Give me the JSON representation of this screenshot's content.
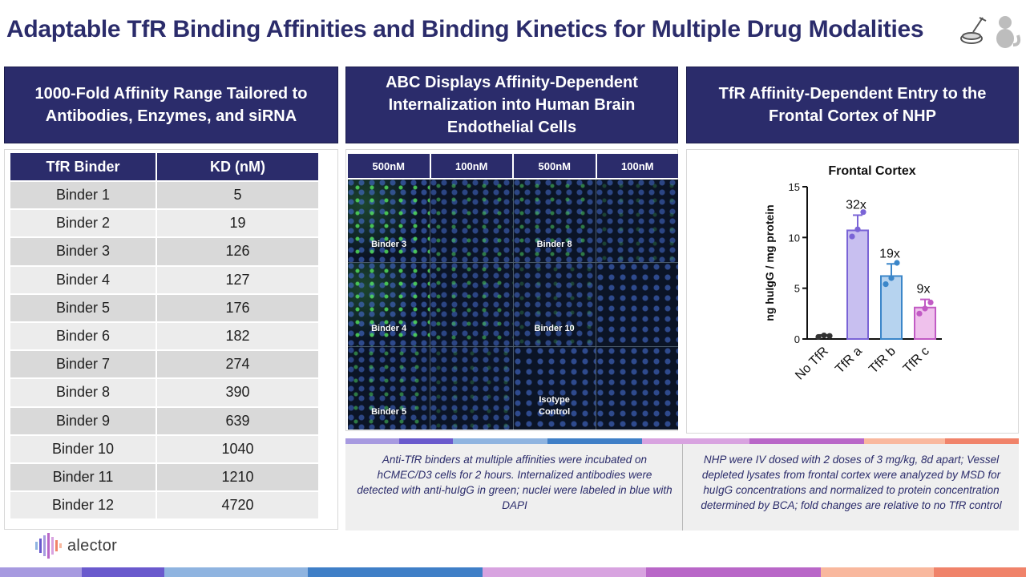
{
  "title": "Adaptable TfR Binding Affinities and Binding Kinetics for Multiple Drug Modalities",
  "header_icons": [
    "petri-dish-pipette-icon",
    "monkey-icon"
  ],
  "panels": {
    "left_header": "1000-Fold Affinity Range Tailored to Antibodies, Enzymes, and siRNA",
    "middle_header": "ABC Displays Affinity-Dependent Internalization into Human Brain Endothelial Cells",
    "right_header": "TfR Affinity-Dependent Entry to the Frontal Cortex of NHP"
  },
  "table": {
    "headers": [
      "TfR Binder",
      "KD (nM)"
    ],
    "rows": [
      {
        "binder": "Binder 1",
        "kd": "5"
      },
      {
        "binder": "Binder 2",
        "kd": "19"
      },
      {
        "binder": "Binder 3",
        "kd": "126"
      },
      {
        "binder": "Binder 4",
        "kd": "127"
      },
      {
        "binder": "Binder 5",
        "kd": "176"
      },
      {
        "binder": "Binder 6",
        "kd": "182"
      },
      {
        "binder": "Binder 7",
        "kd": "274"
      },
      {
        "binder": "Binder 8",
        "kd": "390"
      },
      {
        "binder": "Binder 9",
        "kd": "639"
      },
      {
        "binder": "Binder 10",
        "kd": "1040"
      },
      {
        "binder": "Binder 11",
        "kd": "1210"
      },
      {
        "binder": "Binder 12",
        "kd": "4720"
      }
    ]
  },
  "image_grid": {
    "column_headers": [
      "500nM",
      "100nM",
      "500nM",
      "100nM"
    ],
    "labels": {
      "binder3": "Binder 3",
      "binder8": "Binder 8",
      "binder4": "Binder 4",
      "binder10": "Binder 10",
      "binder5": "Binder 5",
      "isotype_line1": "Isotype",
      "isotype_line2": "Control"
    }
  },
  "chart_data": {
    "type": "bar",
    "title": "Frontal Cortex",
    "ylabel": "ng huIgG / mg protein",
    "xlabel": "",
    "ylim": [
      0,
      15
    ],
    "yticks": [
      0,
      5,
      10,
      15
    ],
    "categories": [
      "No TfR",
      "TfR a",
      "TfR b",
      "TfR c"
    ],
    "values": [
      0.3,
      10.7,
      6.2,
      3.1
    ],
    "errors": [
      0.1,
      1.5,
      1.2,
      0.8
    ],
    "points": [
      [
        0.2,
        0.35,
        0.3
      ],
      [
        10.1,
        10.8,
        12.5
      ],
      [
        5.4,
        6.0,
        7.5
      ],
      [
        2.5,
        3.0,
        3.6
      ]
    ],
    "fold_labels": [
      "",
      "32x",
      "19x",
      "9x"
    ],
    "colors": {
      "fill": [
        "#f0f0f0",
        "#c8bff0",
        "#b6d3ef",
        "#efc1ec"
      ],
      "stroke": [
        "#333333",
        "#7a64d6",
        "#3b86c9",
        "#c15bc4"
      ]
    }
  },
  "captions": {
    "left": "Anti-TfR binders at multiple affinities were incubated on hCMEC/D3 cells for 2 hours. Internalized antibodies were detected with anti-huIgG in green; nuclei were labeled in blue with DAPI",
    "right": "NHP were IV dosed with 2 doses of 3 mg/kg, 8d apart; Vessel depleted lysates from frontal cortex were analyzed by MSD for huIgG concentrations and normalized to protein concentration determined by BCA; fold changes are relative to no TfR control"
  },
  "brand": {
    "logo_text": "alector",
    "stripe_colors": [
      "#a79ae0",
      "#6a5acd",
      "#8fb4e0",
      "#3f7fc7",
      "#d8a3e0",
      "#b967c8",
      "#f9b89e",
      "#f0836a"
    ]
  }
}
